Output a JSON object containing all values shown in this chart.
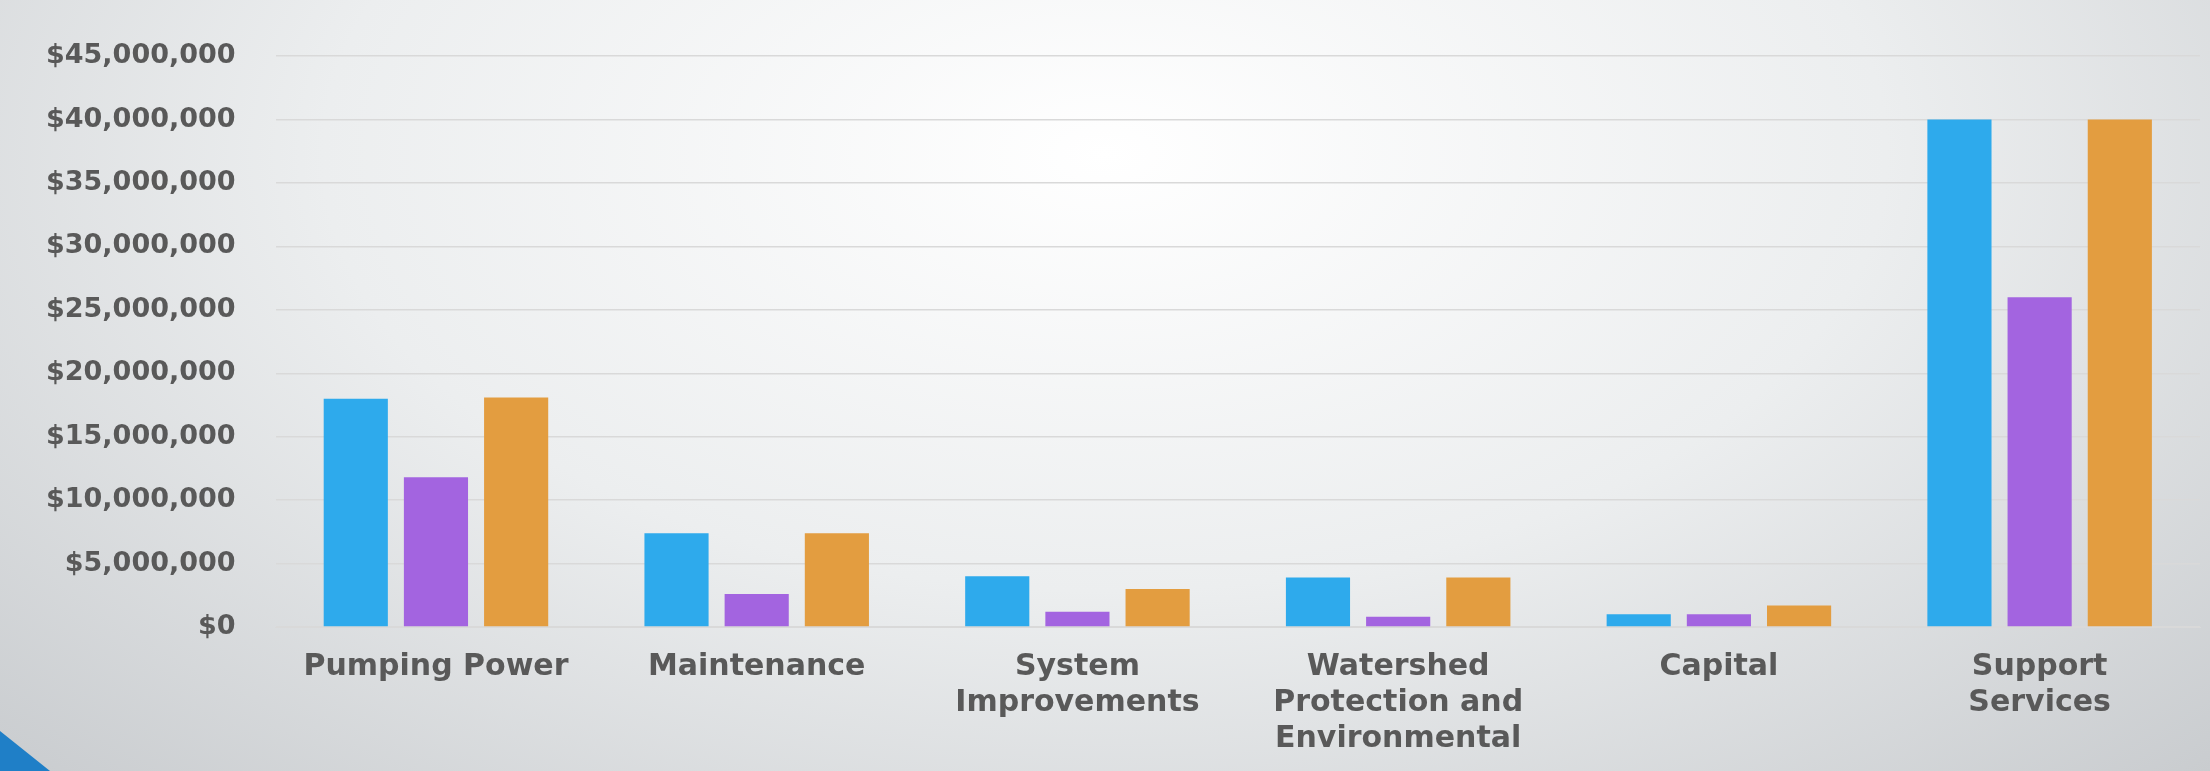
{
  "chart_data": {
    "type": "bar",
    "categories": [
      "Pumping Power",
      "Maintenance",
      "System Improvements",
      "Watershed Protection and Environmental",
      "Capital",
      "Support Services"
    ],
    "series": [
      {
        "color": "#2eaaec",
        "values": [
          18000000,
          7400000,
          4000000,
          3900000,
          1000000,
          40000000
        ]
      },
      {
        "color": "#a364e0",
        "values": [
          11800000,
          2600000,
          1200000,
          800000,
          1000000,
          26000000
        ]
      },
      {
        "color": "#e39d40",
        "values": [
          18100000,
          7400000,
          3000000,
          3900000,
          1700000,
          40000000
        ]
      }
    ],
    "ylim": [
      0,
      45000000
    ],
    "yticks": [
      {
        "value": 0,
        "label": "$0"
      },
      {
        "value": 5000000,
        "label": "$5,000,000"
      },
      {
        "value": 10000000,
        "label": "$10,000,000"
      },
      {
        "value": 15000000,
        "label": "$15,000,000"
      },
      {
        "value": 20000000,
        "label": "$20,000,000"
      },
      {
        "value": 25000000,
        "label": "$25,000,000"
      },
      {
        "value": 30000000,
        "label": "$30,000,000"
      },
      {
        "value": 35000000,
        "label": "$35,000,000"
      },
      {
        "value": 40000000,
        "label": "$40,000,000"
      },
      {
        "value": 45000000,
        "label": "$45,000,000"
      }
    ],
    "grid": "y",
    "legend": false
  }
}
